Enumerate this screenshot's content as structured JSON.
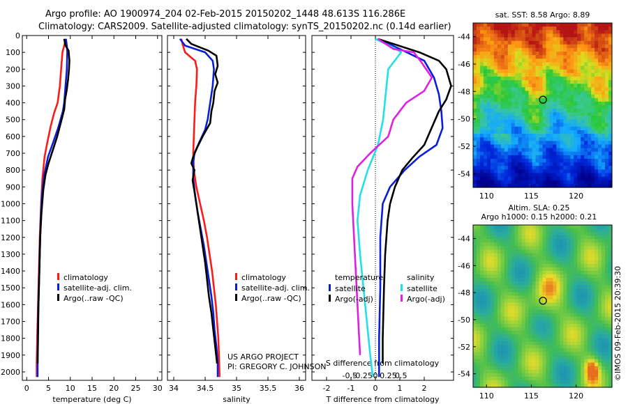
{
  "header": {
    "title_line1": "Argo profile: AO 1900974_204 02-Feb-2015 20150202_1448 48.613S 116.286E",
    "title_line2": "Climatology: CARS2009. Satellite-adjusted climatology: synTS_20150202.nc (0.14d earlier)"
  },
  "footer": {
    "project_line1": "US ARGO PROJECT",
    "project_line2": "PI: GREGORY C. JOHNSON",
    "watermark": "©IMOS 09-Feb-2015 20:39:30"
  },
  "colors": {
    "climatology": "#ff1a1a",
    "satellite": "#0a1ed8",
    "argo": "#000000",
    "satellite_sal": "#22e0e8",
    "argo_sal": "#e020e0"
  },
  "chart_data": [
    {
      "type": "line",
      "id": "temperature",
      "xlabel": "temperature (deg C)",
      "ylabel": "",
      "xlim": [
        -1,
        31
      ],
      "ylim": [
        2050,
        0
      ],
      "xticks": [
        0,
        5,
        10,
        15,
        20,
        25,
        30
      ],
      "yticks": [
        0,
        100,
        200,
        300,
        400,
        500,
        600,
        700,
        800,
        900,
        1000,
        1100,
        1200,
        1300,
        1400,
        1500,
        1600,
        1700,
        1800,
        1900,
        2000
      ],
      "legend": [
        "climatology",
        "satellite-adj. clim.",
        "Argo(..raw -QC)"
      ],
      "series": [
        {
          "name": "climatology",
          "color": "#ff1a1a",
          "points": [
            [
              9.0,
              20
            ],
            [
              8.6,
              60
            ],
            [
              8.2,
              100
            ],
            [
              7.9,
              200
            ],
            [
              7.6,
              300
            ],
            [
              7.1,
              400
            ],
            [
              6.3,
              460
            ],
            [
              5.5,
              540
            ],
            [
              4.7,
              640
            ],
            [
              4.1,
              720
            ],
            [
              3.6,
              850
            ],
            [
              3.3,
              1000
            ],
            [
              3.0,
              1200
            ],
            [
              2.8,
              1400
            ],
            [
              2.6,
              1600
            ],
            [
              2.4,
              1800
            ],
            [
              2.3,
              1950
            ],
            [
              2.3,
              2030
            ]
          ]
        },
        {
          "name": "satellite-adj. clim.",
          "color": "#0a1ed8",
          "points": [
            [
              9.0,
              20
            ],
            [
              9.2,
              60
            ],
            [
              9.3,
              100
            ],
            [
              9.2,
              200
            ],
            [
              8.9,
              300
            ],
            [
              8.6,
              400
            ],
            [
              8.3,
              450
            ],
            [
              7.2,
              550
            ],
            [
              6.0,
              640
            ],
            [
              4.9,
              720
            ],
            [
              4.0,
              830
            ],
            [
              3.5,
              950
            ],
            [
              3.2,
              1100
            ],
            [
              3.0,
              1300
            ],
            [
              2.8,
              1500
            ],
            [
              2.6,
              1700
            ],
            [
              2.5,
              1900
            ],
            [
              2.5,
              2030
            ]
          ]
        },
        {
          "name": "Argo(..raw -QC)",
          "color": "#000000",
          "points": [
            [
              8.6,
              20
            ],
            [
              8.9,
              60
            ],
            [
              9.6,
              90
            ],
            [
              9.8,
              150
            ],
            [
              9.7,
              200
            ],
            [
              9.5,
              260
            ],
            [
              9.2,
              320
            ],
            [
              8.8,
              380
            ],
            [
              8.6,
              440
            ],
            [
              8.0,
              500
            ],
            [
              7.0,
              600
            ],
            [
              6.0,
              680
            ],
            [
              5.0,
              760
            ],
            [
              4.3,
              830
            ],
            [
              3.8,
              920
            ],
            [
              3.4,
              1050
            ],
            [
              3.1,
              1200
            ],
            [
              2.9,
              1400
            ],
            [
              2.7,
              1600
            ],
            [
              2.6,
              1800
            ],
            [
              2.5,
              1950
            ]
          ]
        }
      ]
    },
    {
      "type": "line",
      "id": "salinity",
      "xlabel": "salinity",
      "ylabel": "",
      "xlim": [
        33.9,
        36.1
      ],
      "ylim": [
        2050,
        0
      ],
      "xticks": [
        34,
        34.5,
        35,
        35.5,
        36
      ],
      "legend": [
        "climatology",
        "satellite-adj. clim.",
        "Argo(..raw -QC)"
      ],
      "series": [
        {
          "name": "climatology",
          "color": "#ff1a1a",
          "points": [
            [
              34.12,
              20
            ],
            [
              34.14,
              50
            ],
            [
              34.18,
              100
            ],
            [
              34.34,
              150
            ],
            [
              34.37,
              200
            ],
            [
              34.36,
              300
            ],
            [
              34.34,
              400
            ],
            [
              34.33,
              500
            ],
            [
              34.32,
              600
            ],
            [
              34.31,
              700
            ],
            [
              34.32,
              800
            ],
            [
              34.36,
              900
            ],
            [
              34.42,
              1000
            ],
            [
              34.48,
              1100
            ],
            [
              34.53,
              1200
            ],
            [
              34.57,
              1300
            ],
            [
              34.61,
              1400
            ],
            [
              34.64,
              1500
            ],
            [
              34.67,
              1600
            ],
            [
              34.69,
              1700
            ],
            [
              34.71,
              1800
            ],
            [
              34.72,
              1900
            ],
            [
              34.73,
              2030
            ]
          ]
        },
        {
          "name": "satellite-adj. clim.",
          "color": "#0a1ed8",
          "points": [
            [
              34.1,
              20
            ],
            [
              34.18,
              60
            ],
            [
              34.5,
              100
            ],
            [
              34.62,
              150
            ],
            [
              34.64,
              200
            ],
            [
              34.62,
              300
            ],
            [
              34.58,
              400
            ],
            [
              34.54,
              500
            ],
            [
              34.5,
              560
            ],
            [
              34.4,
              640
            ],
            [
              34.33,
              700
            ],
            [
              34.31,
              760
            ],
            [
              34.31,
              850
            ],
            [
              34.34,
              950
            ],
            [
              34.38,
              1050
            ],
            [
              34.43,
              1150
            ],
            [
              34.48,
              1250
            ],
            [
              34.52,
              1350
            ],
            [
              34.56,
              1450
            ],
            [
              34.6,
              1550
            ],
            [
              34.63,
              1650
            ],
            [
              34.65,
              1750
            ],
            [
              34.68,
              1850
            ],
            [
              34.7,
              1950
            ],
            [
              34.7,
              2030
            ]
          ]
        },
        {
          "name": "Argo(..raw -QC)",
          "color": "#000000",
          "points": [
            [
              34.2,
              20
            ],
            [
              34.28,
              50
            ],
            [
              34.55,
              90
            ],
            [
              34.68,
              120
            ],
            [
              34.7,
              180
            ],
            [
              34.66,
              230
            ],
            [
              34.7,
              280
            ],
            [
              34.65,
              330
            ],
            [
              34.63,
              400
            ],
            [
              34.6,
              450
            ],
            [
              34.58,
              520
            ],
            [
              34.46,
              600
            ],
            [
              34.38,
              660
            ],
            [
              34.31,
              720
            ],
            [
              34.28,
              760
            ],
            [
              34.33,
              800
            ],
            [
              34.3,
              860
            ],
            [
              34.34,
              950
            ],
            [
              34.38,
              1050
            ],
            [
              34.42,
              1150
            ],
            [
              34.46,
              1250
            ],
            [
              34.5,
              1350
            ],
            [
              34.53,
              1450
            ],
            [
              34.56,
              1550
            ],
            [
              34.6,
              1650
            ],
            [
              34.63,
              1750
            ],
            [
              34.66,
              1850
            ],
            [
              34.69,
              1950
            ]
          ]
        }
      ]
    },
    {
      "type": "line",
      "id": "difference",
      "xlabel": "T difference from climatology",
      "xlabel2": "S difference from climatology",
      "ylabel": "",
      "xlim": [
        -2.6,
        3.2
      ],
      "ylim": [
        2050,
        0
      ],
      "xticks": [
        -2,
        -1,
        0,
        1,
        2
      ],
      "xticks_s": [
        -0.5,
        -0.25,
        0,
        0.25,
        0.5
      ],
      "legend_titles": [
        "temperature",
        "salinity"
      ],
      "legend": [
        "satellite",
        "Argo(-adj)",
        "satellite",
        "Argo(-adj)"
      ],
      "series": [
        {
          "name": "satellite",
          "group": "temperature",
          "color": "#0a1ed8",
          "points": [
            [
              0.1,
              20
            ],
            [
              1.0,
              80
            ],
            [
              2.0,
              150
            ],
            [
              2.4,
              250
            ],
            [
              2.6,
              350
            ],
            [
              2.7,
              450
            ],
            [
              2.75,
              550
            ],
            [
              2.5,
              650
            ],
            [
              1.8,
              720
            ],
            [
              1.2,
              800
            ],
            [
              0.6,
              900
            ],
            [
              0.3,
              1000
            ],
            [
              0.2,
              1200
            ],
            [
              0.2,
              1500
            ],
            [
              0.15,
              1800
            ],
            [
              0.15,
              2030
            ]
          ]
        },
        {
          "name": "Argo(-adj)",
          "group": "temperature",
          "color": "#000000",
          "points": [
            [
              0.1,
              20
            ],
            [
              1.8,
              100
            ],
            [
              2.6,
              150
            ],
            [
              2.9,
              200
            ],
            [
              3.1,
              300
            ],
            [
              2.9,
              380
            ],
            [
              2.6,
              450
            ],
            [
              2.3,
              550
            ],
            [
              2.0,
              650
            ],
            [
              1.5,
              730
            ],
            [
              1.1,
              800
            ],
            [
              0.8,
              900
            ],
            [
              0.6,
              1000
            ],
            [
              0.5,
              1100
            ],
            [
              0.4,
              1300
            ],
            [
              0.35,
              1500
            ],
            [
              0.3,
              1800
            ],
            [
              0.3,
              1950
            ]
          ]
        },
        {
          "name": "satellite",
          "group": "salinity",
          "color": "#22e0e8",
          "points": [
            [
              0.0,
              20
            ],
            [
              0.4,
              80
            ],
            [
              0.5,
              100
            ],
            [
              0.25,
              200
            ],
            [
              0.2,
              350
            ],
            [
              0.15,
              500
            ],
            [
              0.05,
              650
            ],
            [
              -0.15,
              800
            ],
            [
              -0.3,
              950
            ],
            [
              -0.35,
              1100
            ],
            [
              -0.3,
              1300
            ],
            [
              -0.2,
              1600
            ],
            [
              -0.1,
              1900
            ],
            [
              -0.05,
              2030
            ]
          ]
        },
        {
          "name": "Argo(-adj)",
          "group": "salinity",
          "color": "#e020e0",
          "points": [
            [
              0.05,
              20
            ],
            [
              0.35,
              80
            ],
            [
              0.75,
              100
            ],
            [
              0.9,
              160
            ],
            [
              1.1,
              250
            ],
            [
              0.95,
              330
            ],
            [
              0.6,
              400
            ],
            [
              0.35,
              500
            ],
            [
              0.25,
              600
            ],
            [
              -0.1,
              700
            ],
            [
              -0.35,
              780
            ],
            [
              -0.45,
              850
            ],
            [
              -0.45,
              1000
            ],
            [
              -0.4,
              1300
            ],
            [
              -0.35,
              1600
            ],
            [
              -0.3,
              1900
            ]
          ]
        }
      ]
    },
    {
      "type": "heatmap",
      "id": "sst_map",
      "title": "sat. SST: 8.58 Argo: 8.89",
      "xlim": [
        108.5,
        124.0
      ],
      "ylim": [
        -55.0,
        -43.0
      ],
      "xticks": [
        110,
        115,
        120
      ],
      "yticks": [
        -44,
        -46,
        -48,
        -50,
        -52,
        -54
      ],
      "marker": [
        116.3,
        -48.6
      ]
    },
    {
      "type": "heatmap",
      "id": "sla_map",
      "title": "Altim. SLA: 0.25",
      "subtitle": "Argo h1000: 0.15 h2000: 0.21",
      "xlim": [
        108.5,
        124.0
      ],
      "ylim": [
        -55.0,
        -43.0
      ],
      "xticks": [
        110,
        115,
        120
      ],
      "yticks": [
        -44,
        -46,
        -48,
        -50,
        -52,
        -54
      ],
      "marker": [
        116.3,
        -48.6
      ]
    }
  ]
}
